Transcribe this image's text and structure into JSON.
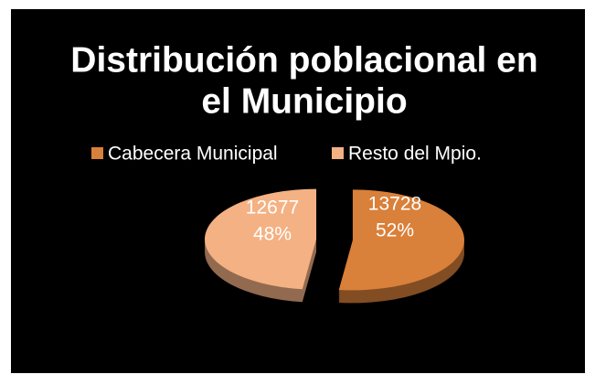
{
  "chart_data": {
    "type": "pie",
    "title_lines": [
      "Distribución poblacional en",
      "el Municipio"
    ],
    "categories": [
      "Cabecera Municipal",
      "Resto del Mpio."
    ],
    "values": [
      13728,
      12677
    ],
    "percent_labels": [
      "52%",
      "48%"
    ],
    "colors": [
      "#d9803a",
      "#f4b183"
    ],
    "legend": "top"
  }
}
